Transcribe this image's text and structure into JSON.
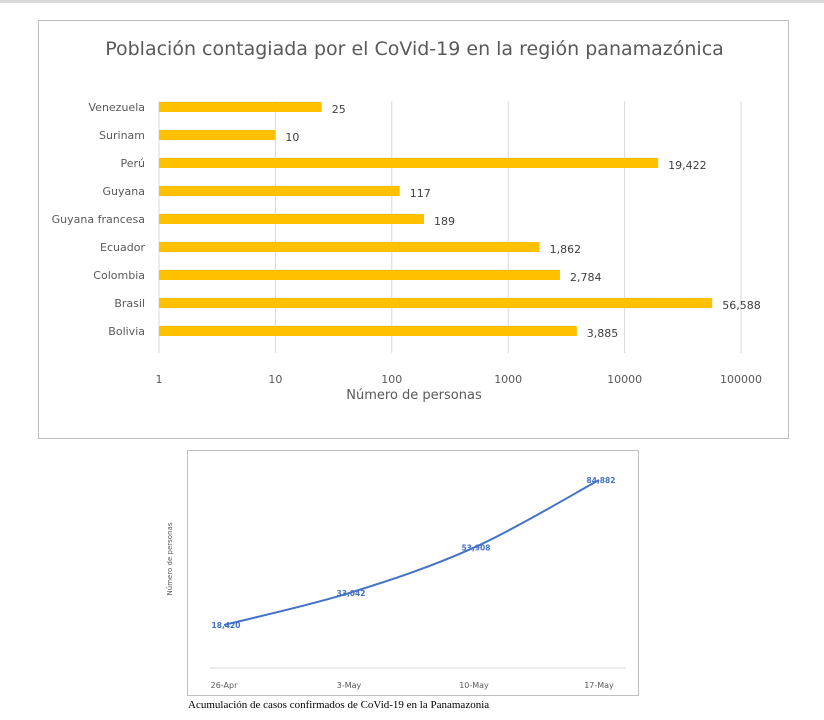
{
  "chart_data": [
    {
      "type": "bar",
      "orientation": "horizontal",
      "title": "Población contagiada por el CoVid-19 en la región panamazónica",
      "xlabel": "Número de personas",
      "ylabel": "",
      "x_scale": "log",
      "xlim": [
        1,
        100000
      ],
      "x_ticks": [
        "1",
        "10",
        "100",
        "1000",
        "10000",
        "100000"
      ],
      "grid": true,
      "categories": [
        "Venezuela",
        "Surinam",
        "Perú",
        "Guyana",
        "Guyana francesa",
        "Ecuador",
        "Colombia",
        "Brasil",
        "Bolivia"
      ],
      "values": [
        25,
        10,
        19422,
        117,
        189,
        1862,
        2784,
        56588,
        3885
      ],
      "data_labels": [
        "25",
        "10",
        "19,422",
        "117",
        "189",
        "1,862",
        "2,784",
        "56,588",
        "3,885"
      ],
      "bar_color": "#ffc000"
    },
    {
      "type": "line",
      "title": "",
      "xlabel": "",
      "ylabel": "Número de personas",
      "categories": [
        "26-Apr",
        "3-May",
        "10-May",
        "17-May"
      ],
      "values": [
        18420,
        33042,
        53908,
        84882
      ],
      "data_labels": [
        "18,420",
        "33,042",
        "53,908",
        "84,882"
      ],
      "line_color": "#4472c4",
      "label_color": "#4472c4"
    }
  ],
  "caption": "Acumulación de casos confirmados de CoVid-19 en la Panamazonia"
}
